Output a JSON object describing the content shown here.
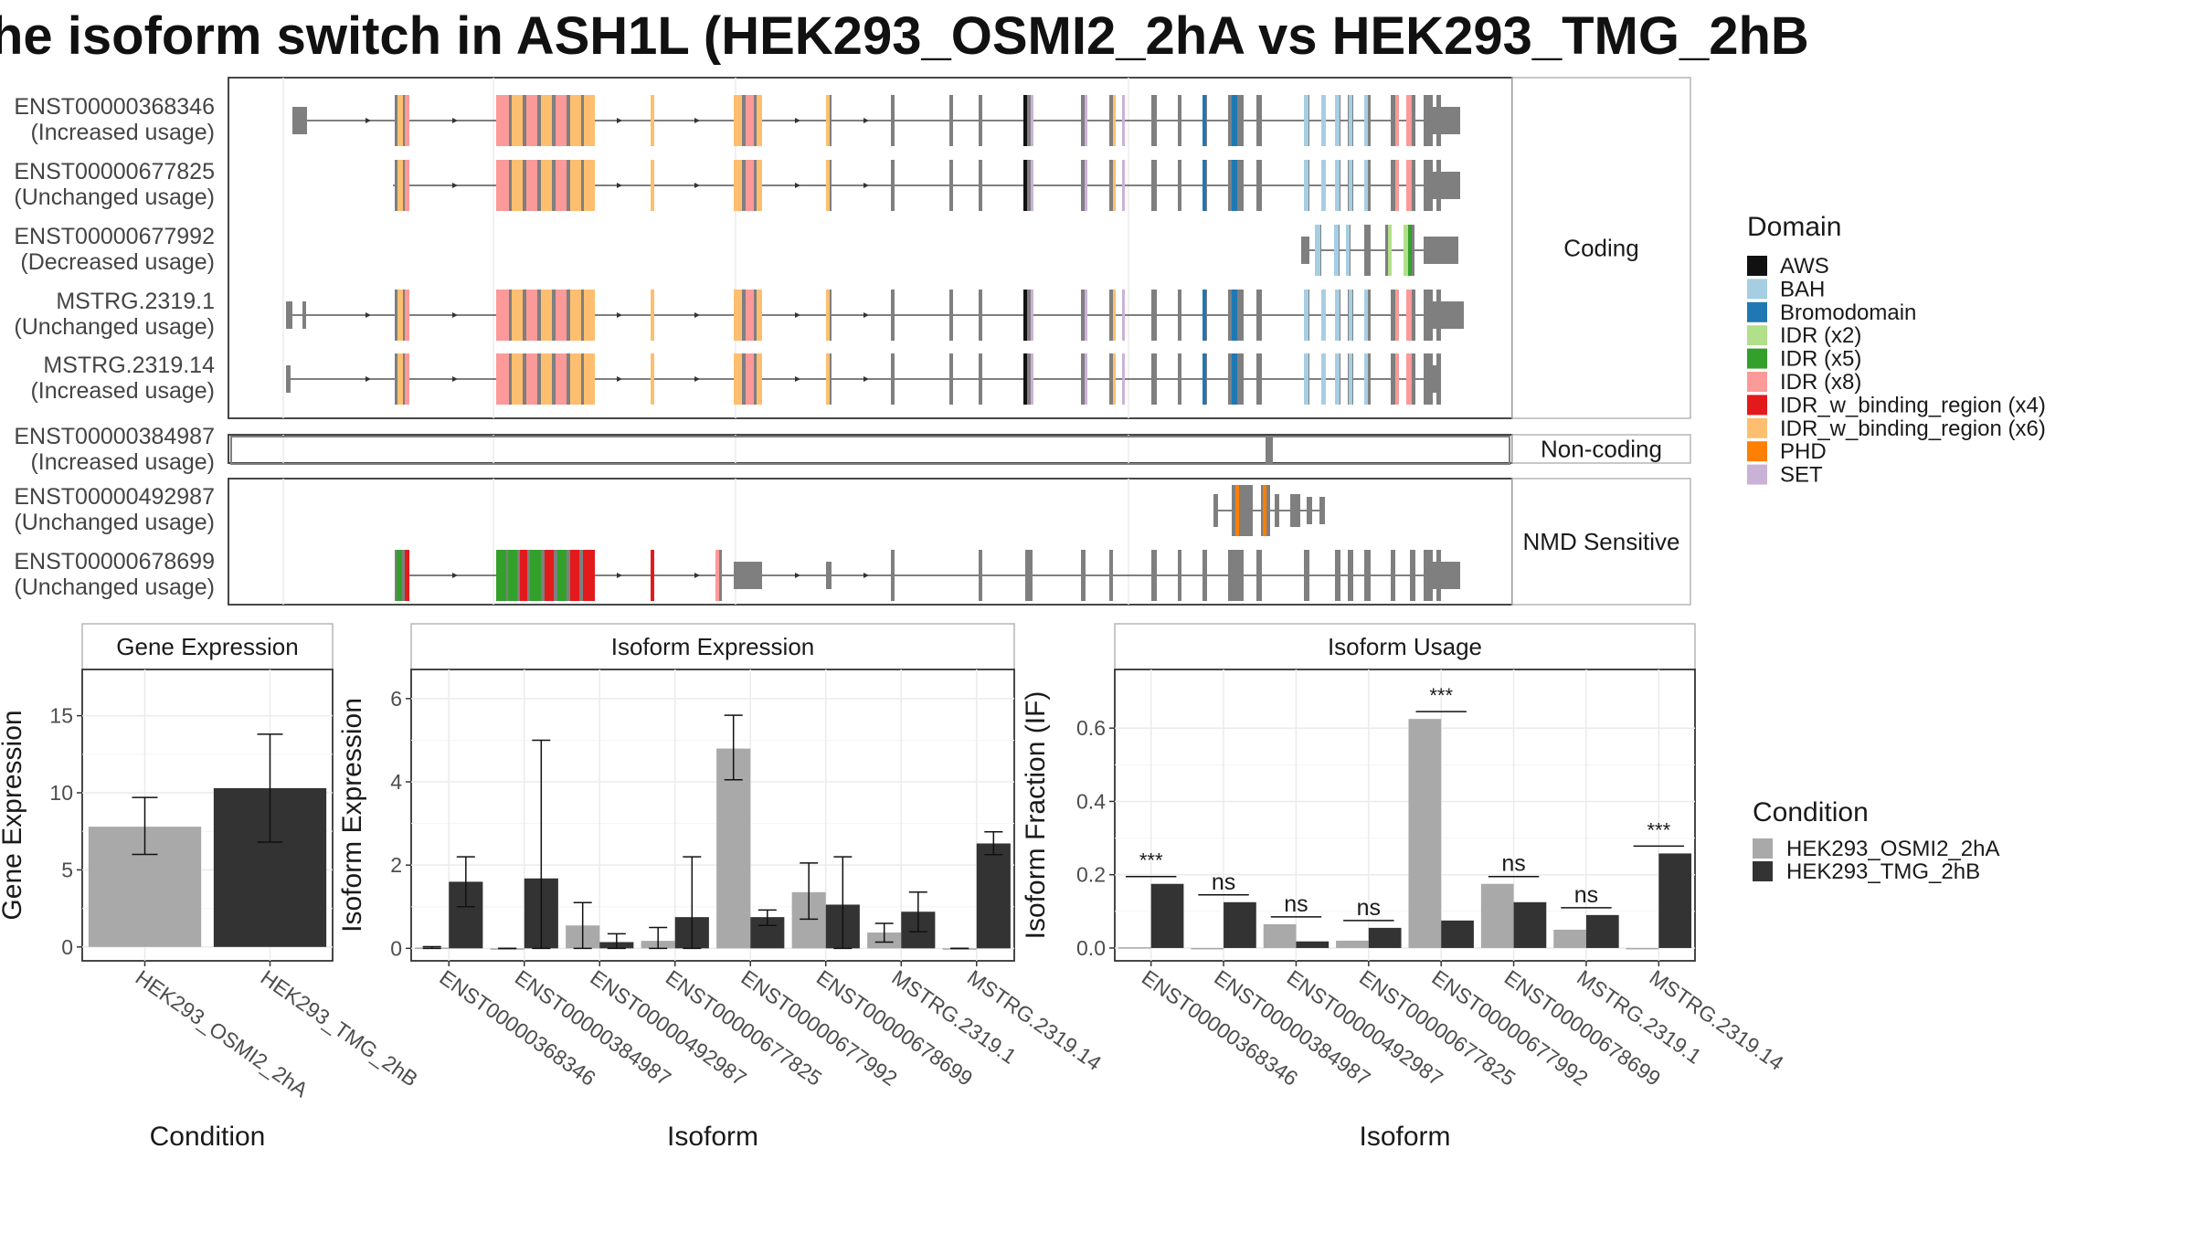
{
  "title": "he isoform switch in ASH1L (HEK293_OSMI2_2hA vs HEK293_TMG_2hB",
  "colors": {
    "domain": {
      "AWS": "#111111",
      "BAH": "#a6cee3",
      "Bromodomain": "#1f78b4",
      "IDR (x2)": "#b2df8a",
      "IDR (x5)": "#33a02c",
      "IDR (x8)": "#fb9a99",
      "IDR_w_binding_region (x4)": "#e31a1c",
      "IDR_w_binding_region (x6)": "#fdbf6f",
      "PHD": "#ff7f00",
      "SET": "#cab2d6"
    },
    "condition": {
      "HEK293_OSMI2_2hA": "#a9a9a9",
      "HEK293_TMG_2hB": "#333333"
    },
    "exon": "#7f7f7f"
  },
  "structure": {
    "groups": [
      {
        "label": "Coding",
        "isoforms": [
          {
            "id": "ENST00000368346",
            "usage": "(Increased usage)",
            "type": "full"
          },
          {
            "id": "ENST00000677825",
            "usage": "(Unchanged usage)",
            "type": "nofirst"
          },
          {
            "id": "ENST00000677992",
            "usage": "(Decreased usage)",
            "type": "short"
          },
          {
            "id": "MSTRG.2319.1",
            "usage": "(Unchanged usage)",
            "type": "extra"
          },
          {
            "id": "MSTRG.2319.14",
            "usage": "(Increased usage)",
            "type": "full2"
          }
        ]
      },
      {
        "label": "Non-coding",
        "isoforms": [
          {
            "id": "ENST00000384987",
            "usage": "(Increased usage)",
            "type": "noncoding"
          }
        ]
      },
      {
        "label": "NMD Sensitive",
        "isoforms": [
          {
            "id": "ENST00000492987",
            "usage": "(Unchanged usage)",
            "type": "nmd_short"
          },
          {
            "id": "ENST00000678699",
            "usage": "(Unchanged usage)",
            "type": "nmd_full"
          }
        ]
      }
    ],
    "legend_title": "Domain",
    "legend_items": [
      "AWS",
      "BAH",
      "Bromodomain",
      "IDR (x2)",
      "IDR (x5)",
      "IDR (x8)",
      "IDR_w_binding_region (x4)",
      "IDR_w_binding_region (x6)",
      "PHD",
      "SET"
    ]
  },
  "chart_data": [
    {
      "type": "bar",
      "title": "Gene Expression",
      "xlabel": "Condition",
      "ylabel": "Gene Expression",
      "categories": [
        "HEK293_OSMI2_2hA",
        "HEK293_TMG_2hB"
      ],
      "values": [
        7.8,
        10.3
      ],
      "error": [
        [
          6.0,
          9.7
        ],
        [
          6.8,
          13.8
        ]
      ],
      "ylim": [
        -0.9,
        18.0
      ],
      "yticks": [
        0,
        5,
        10,
        15
      ]
    },
    {
      "type": "bar",
      "title": "Isoform Expression",
      "xlabel": "Isoform",
      "ylabel": "Isoform Expression",
      "categories": [
        "ENST00000368346",
        "ENST00000384987",
        "ENST00000492987",
        "ENST00000677825",
        "ENST00000677992",
        "ENST00000678699",
        "MSTRG.2319.1",
        "MSTRG.2319.14"
      ],
      "series": [
        {
          "name": "HEK293_OSMI2_2hA",
          "values": [
            0.02,
            0.0,
            0.55,
            0.18,
            4.8,
            1.35,
            0.38,
            0.0
          ],
          "error": [
            [
              0.0,
              0.04
            ],
            [
              0.0,
              0.0
            ],
            [
              0.0,
              1.1
            ],
            [
              0.0,
              0.5
            ],
            [
              4.05,
              5.6
            ],
            [
              0.7,
              2.05
            ],
            [
              0.15,
              0.6
            ],
            [
              0.0,
              0.0
            ]
          ]
        },
        {
          "name": "HEK293_TMG_2hB",
          "values": [
            1.6,
            1.68,
            0.15,
            0.75,
            0.75,
            1.05,
            0.88,
            2.52
          ],
          "error": [
            [
              1.0,
              2.2
            ],
            [
              0.0,
              5.0
            ],
            [
              0.0,
              0.35
            ],
            [
              0.0,
              2.2
            ],
            [
              0.55,
              0.92
            ],
            [
              0.0,
              2.2
            ],
            [
              0.4,
              1.35
            ],
            [
              2.25,
              2.8
            ]
          ]
        }
      ],
      "ylim": [
        -0.3,
        6.7
      ],
      "yticks": [
        0,
        2,
        4,
        6
      ]
    },
    {
      "type": "bar",
      "title": "Isoform Usage",
      "xlabel": "Isoform",
      "ylabel": "Isoform Fraction (IF)",
      "categories": [
        "ENST00000368346",
        "ENST00000384987",
        "ENST00000492987",
        "ENST00000677825",
        "ENST00000677992",
        "ENST00000678699",
        "MSTRG.2319.1",
        "MSTRG.2319.14"
      ],
      "series": [
        {
          "name": "HEK293_OSMI2_2hA",
          "values": [
            0.002,
            0.0,
            0.065,
            0.02,
            0.625,
            0.175,
            0.05,
            0.0
          ]
        },
        {
          "name": "HEK293_TMG_2hB",
          "values": [
            0.175,
            0.125,
            0.018,
            0.055,
            0.075,
            0.125,
            0.09,
            0.258
          ]
        }
      ],
      "significance": [
        "***",
        "ns",
        "ns",
        "ns",
        "***",
        "ns",
        "ns",
        "***"
      ],
      "ylim": [
        -0.035,
        0.76
      ],
      "yticks": [
        0.0,
        0.2,
        0.4,
        0.6
      ],
      "ytick_labels": [
        "0.0",
        "0.2",
        "0.4",
        "0.6"
      ]
    }
  ],
  "condition_legend": {
    "title": "Condition",
    "items": [
      "HEK293_OSMI2_2hA",
      "HEK293_TMG_2hB"
    ]
  }
}
